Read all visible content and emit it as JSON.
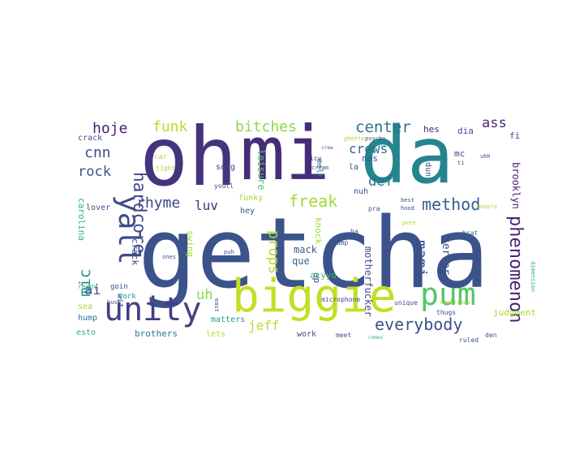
{
  "words": [
    {
      "text": "getcha",
      "color": "#3b528b"
    },
    {
      "text": "oh",
      "color": "#46337e"
    },
    {
      "text": "mi",
      "color": "#472c7a"
    },
    {
      "text": "da",
      "color": "#25858e"
    },
    {
      "text": "biggie",
      "color": "#c2df23"
    },
    {
      "text": "unity",
      "color": "#433e85"
    },
    {
      "text": "pum",
      "color": "#54c568"
    },
    {
      "text": "yall",
      "color": "#3e4c8a"
    },
    {
      "text": "everybody",
      "color": "#3b528b"
    },
    {
      "text": "phenomenon",
      "color": "#482374"
    },
    {
      "text": "method",
      "color": "#365c8d"
    },
    {
      "text": "hardcore",
      "color": "#3f4889"
    },
    {
      "text": "freak",
      "color": "#a2da37"
    },
    {
      "text": "mami",
      "color": "#3d4e8a"
    },
    {
      "text": "props",
      "color": "#b5de2b"
    },
    {
      "text": "bitches",
      "color": "#8fd744"
    },
    {
      "text": "funk",
      "color": "#b8de29"
    },
    {
      "text": "center",
      "color": "#2c728e"
    },
    {
      "text": "crews",
      "color": "#31688e"
    },
    {
      "text": "rhyme",
      "color": "#3f4788"
    },
    {
      "text": "hoje",
      "color": "#481f70"
    },
    {
      "text": "cnn",
      "color": "#3c508b"
    },
    {
      "text": "rock",
      "color": "#3b528b"
    },
    {
      "text": "mic",
      "color": "#1f978b"
    },
    {
      "text": "ai",
      "color": "#3c4f8a"
    },
    {
      "text": "luv",
      "color": "#46307e"
    },
    {
      "text": "def",
      "color": "#2e6f8e"
    },
    {
      "text": "ass",
      "color": "#482576"
    },
    {
      "text": "uh",
      "color": "#8bd646"
    },
    {
      "text": "jeff",
      "color": "#b8de29"
    },
    {
      "text": "motherfucker",
      "color": "#3d4e8a"
    },
    {
      "text": "brooklyn",
      "color": "#482475"
    },
    {
      "text": "terror",
      "color": "#3b528b"
    },
    {
      "text": "ladies",
      "color": "#39558c"
    },
    {
      "text": "leisure",
      "color": "#4ec36b"
    },
    {
      "text": "nas",
      "color": "#3f4788"
    },
    {
      "text": "song",
      "color": "#a5db36"
    },
    {
      "text": "funky",
      "color": "#3b528b"
    },
    {
      "text": "knock",
      "color": "#a2da37"
    },
    {
      "text": "hey",
      "color": "#365c8d"
    },
    {
      "text": "mack",
      "color": "#31688e"
    },
    {
      "text": "que",
      "color": "#3dbc74"
    },
    {
      "text": "aiyyo",
      "color": "#1e9b8a"
    },
    {
      "text": "matters",
      "color": "#3e4a89"
    },
    {
      "text": "work",
      "color": "#a8db34"
    },
    {
      "text": "judgment",
      "color": "#2c728e"
    },
    {
      "text": "brothers",
      "color": "#2db27d"
    },
    {
      "text": "esto",
      "color": "#b5de2b"
    },
    {
      "text": "lets",
      "color": "#287d8e"
    },
    {
      "text": "hump",
      "color": "#a2da37"
    },
    {
      "text": "sea",
      "color": "#1f988b"
    },
    {
      "text": "york",
      "color": "#3b528b"
    },
    {
      "text": "wit",
      "color": "#3d4e8a"
    },
    {
      "text": "goin",
      "color": "#3dbc74"
    },
    {
      "text": "ready",
      "color": "#404688"
    },
    {
      "text": "carolina",
      "color": "#2db27d"
    },
    {
      "text": "bust",
      "color": "#3e4c8a"
    },
    {
      "text": "lover",
      "color": "#3b528b"
    },
    {
      "text": "crack",
      "color": "#404688"
    },
    {
      "text": "swing",
      "color": "#a2da37"
    },
    {
      "text": "car",
      "color": "#a5db36"
    },
    {
      "text": "tight",
      "color": "#a2da37"
    },
    {
      "text": "youll",
      "color": "#3b528b"
    },
    {
      "text": "melt",
      "color": "#2c728e"
    },
    {
      "text": "icy",
      "color": "#482475"
    },
    {
      "text": "cream",
      "color": "#3b528b"
    },
    {
      "text": "la",
      "color": "#3e4c8a"
    },
    {
      "text": "nuh",
      "color": "#3b528b"
    },
    {
      "text": "mc",
      "color": "#3e4c8a"
    },
    {
      "text": "dun",
      "color": "#3b528b"
    },
    {
      "text": "hes",
      "color": "#482475"
    },
    {
      "text": "dia",
      "color": "#3e4c8a"
    },
    {
      "text": "fi",
      "color": "#3b528b"
    },
    {
      "text": "ghetto",
      "color": "#a5db36"
    },
    {
      "text": "psycho",
      "color": "#3b528b"
    },
    {
      "text": "babies",
      "color": "#1f988b"
    },
    {
      "text": "uhh",
      "color": "#3e4c8a"
    },
    {
      "text": "pete",
      "color": "#a2da37"
    },
    {
      "text": "best",
      "color": "#3b528b"
    },
    {
      "text": "pra",
      "color": "#3e4c8a"
    },
    {
      "text": "hood",
      "color": "#3b528b"
    },
    {
      "text": "ha",
      "color": "#3b528b"
    },
    {
      "text": "pump",
      "color": "#3e4c8a"
    },
    {
      "text": "ap",
      "color": "#3b528b"
    },
    {
      "text": "microphone",
      "color": "#3e4c8a"
    },
    {
      "text": "comes",
      "color": "#2db27d"
    },
    {
      "text": "unique",
      "color": "#3b528b"
    },
    {
      "text": "thugs",
      "color": "#3e4c8a"
    },
    {
      "text": "ruled",
      "color": "#3b528b"
    },
    {
      "text": "meet",
      "color": "#3e4c8a"
    },
    {
      "text": "den",
      "color": "#3b528b"
    },
    {
      "text": "east",
      "color": "#3e4c8a"
    },
    {
      "text": "sometimes",
      "color": "#a2da37"
    },
    {
      "text": "brat",
      "color": "#2c728e"
    },
    {
      "text": "dimension",
      "color": "#2db27d"
    },
    {
      "text": "people",
      "color": "#a2da37"
    },
    {
      "text": "ones",
      "color": "#3b528b"
    },
    {
      "text": "puh",
      "color": "#3e4c8a"
    },
    {
      "text": "ti",
      "color": "#3e4c8a"
    },
    {
      "text": "crew",
      "color": "#3b528b"
    }
  ]
}
